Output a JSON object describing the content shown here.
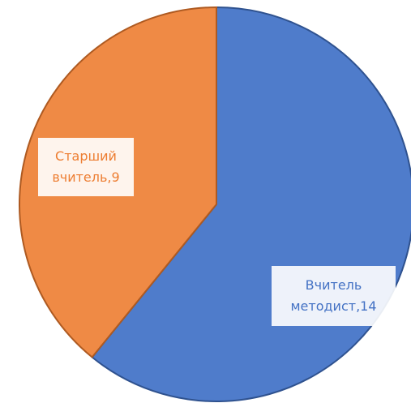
{
  "chart_data": {
    "type": "pie",
    "values": [
      14,
      9
    ],
    "value_labels": [
      "Вчитель методист,14",
      "Старший вчитель,9"
    ],
    "colors": [
      "#4f7ccb",
      "#ef8a45"
    ],
    "label_colors": [
      "#4472c4",
      "#ed7d31"
    ]
  }
}
